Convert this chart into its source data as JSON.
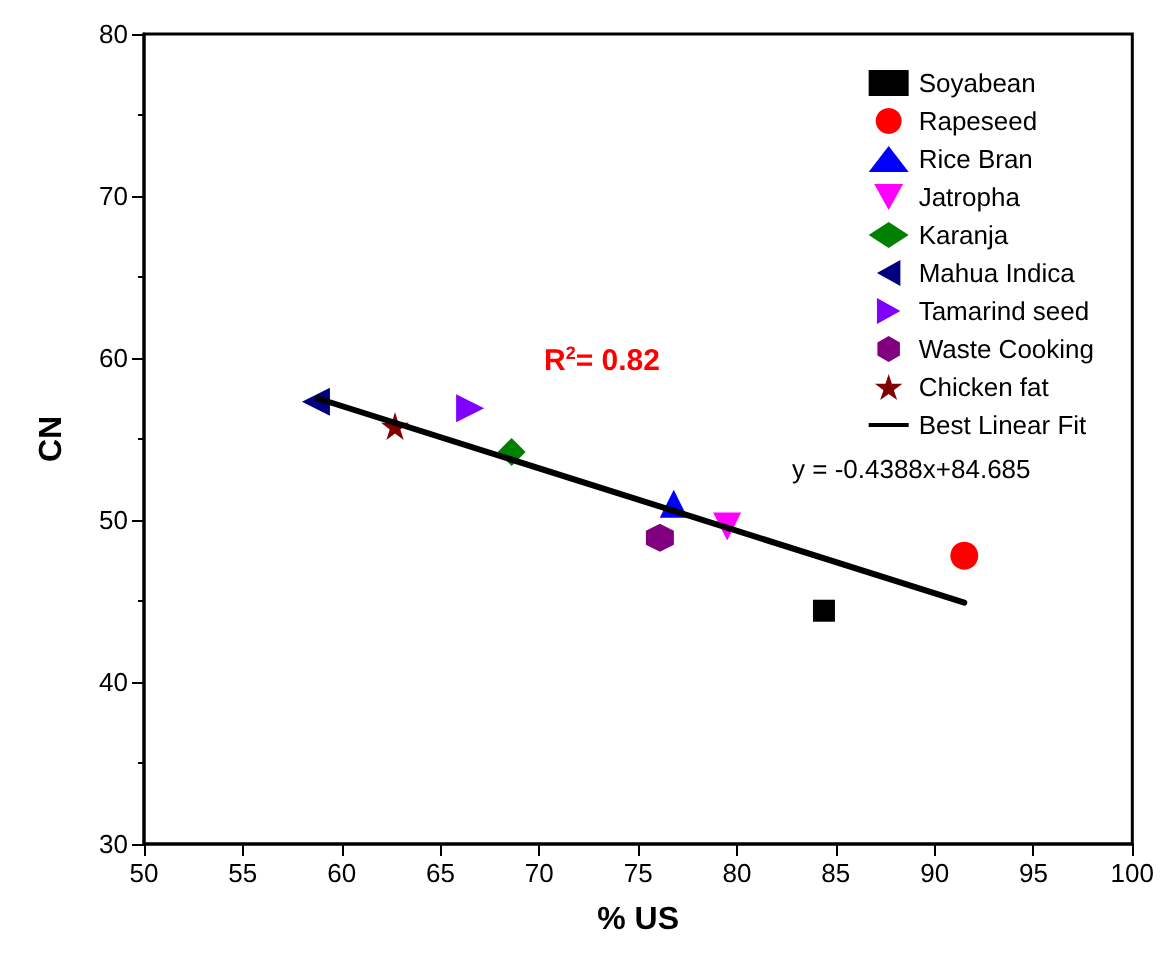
{
  "chart_data": {
    "type": "scatter",
    "xlabel": "% US",
    "ylabel": "CN",
    "xlim": [
      50,
      100
    ],
    "xticks": [
      50,
      55,
      60,
      65,
      70,
      75,
      80,
      85,
      90,
      95,
      100
    ],
    "ylim": [
      30,
      80
    ],
    "yticks": [
      30,
      40,
      50,
      60,
      70,
      80
    ],
    "grid": false,
    "legend": "top right",
    "annotations": [
      "R$^{2}$= 0.82",
      "y = -0.4388x+84.685"
    ],
    "series": [
      {
        "name": "Soyabean",
        "color": "#000000",
        "marker": "square",
        "x": [
          84.4
        ],
        "values": [
          44.4
        ]
      },
      {
        "name": "Rapeseed",
        "color": "#ff0000",
        "marker": "circle",
        "x": [
          91.5
        ],
        "values": [
          47.8
        ]
      },
      {
        "name": "Rice Bran",
        "color": "#0000ff",
        "marker": "triangle",
        "x": [
          76.8
        ],
        "values": [
          51.0
        ]
      },
      {
        "name": "Jatropha",
        "color": "#ff00ff",
        "marker": "triangle-down",
        "x": [
          79.5
        ],
        "values": [
          49.6
        ]
      },
      {
        "name": "Karanja",
        "color": "#008000",
        "marker": "diamond",
        "x": [
          68.6
        ],
        "values": [
          54.2
        ]
      },
      {
        "name": "Mahua Indica",
        "color": "#000080",
        "marker": "triangle-left",
        "x": [
          58.7
        ],
        "values": [
          57.3
        ]
      },
      {
        "name": "Tamarind seed",
        "color": "#8000ff",
        "marker": "triangle-right",
        "x": [
          66.5
        ],
        "values": [
          56.9
        ]
      },
      {
        "name": "Waste Cooking",
        "color": "#800080",
        "x": [
          76.1
        ],
        "values": [
          48.9
        ]
      },
      {
        "name": "Chicken fat",
        "color": "#800000",
        "marker": "star",
        "x": [
          62.7
        ],
        "values": [
          55.8
        ]
      },
      {
        "name": "Best Linear Fit",
        "type": "line",
        "color": "#000000",
        "marker": "none",
        "x": [
          58.8,
          91.5
        ],
        "values": [
          57.5,
          44.9
        ]
      }
    ]
  }
}
